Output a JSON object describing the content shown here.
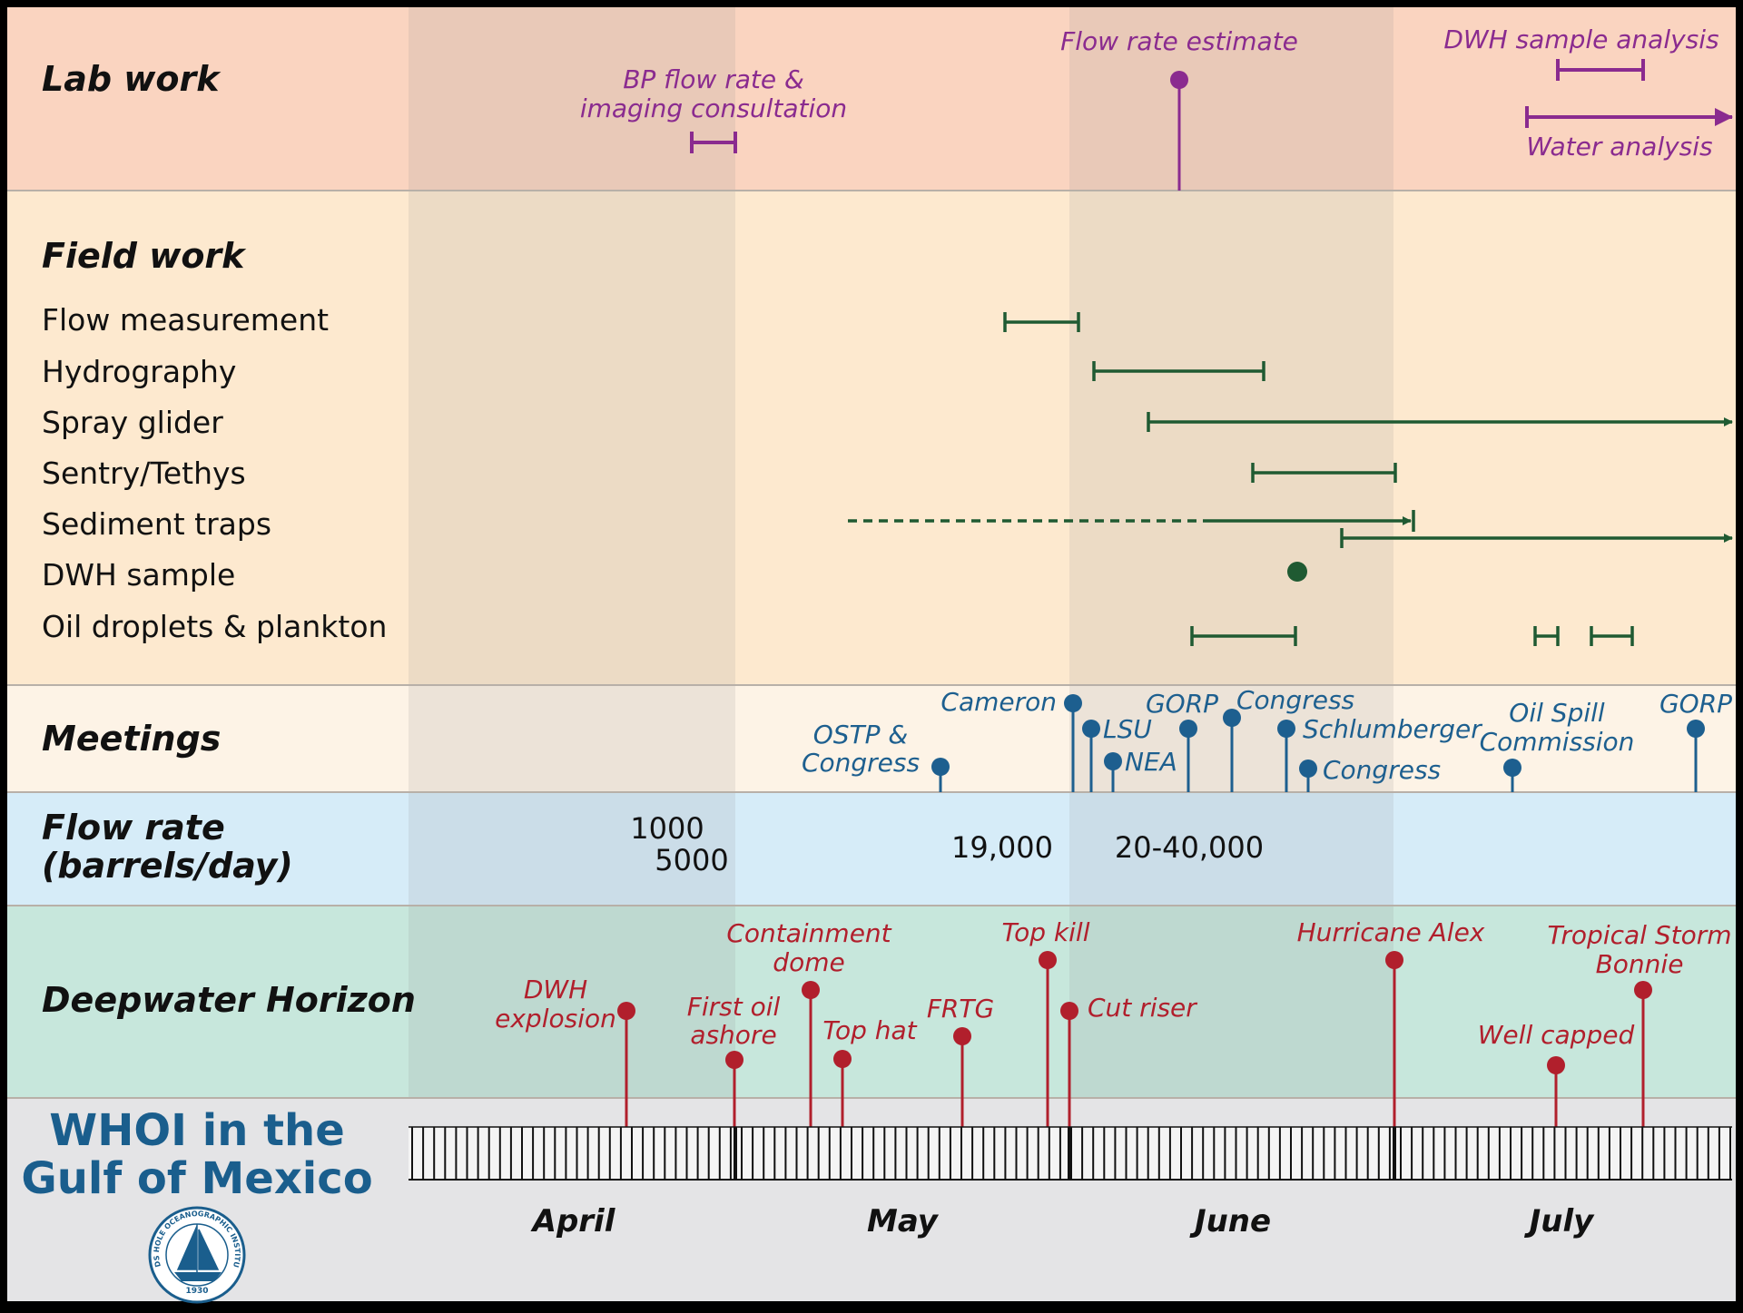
{
  "colors": {
    "lab_bg": "#fad4c0",
    "field_bg": "#fde9cf",
    "meetings_bg": "#fdf3e6",
    "flow_bg": "#d6ecf8",
    "dwh_bg": "#c7e7dc",
    "axis_bg": "#e4e4e6",
    "lab_accent": "#8a2b8f",
    "field_accent": "#1f5a32",
    "meetings_accent": "#1d5f8f",
    "dwh_accent": "#b11f2c",
    "brand": "#1a5e8d"
  },
  "sections": {
    "lab": "Lab work",
    "field": "Field work",
    "meetings": "Meetings",
    "flow_line1": "Flow rate",
    "flow_line2": "(barrels/day)",
    "dwh": "Deepwater Horizon"
  },
  "brand": {
    "line1": "WHOI in the",
    "line2": "Gulf of Mexico",
    "seal_text": "WOODS HOLE OCEANOGRAPHIC INSTITUTION",
    "seal_year": "1930"
  },
  "months": [
    "April",
    "May",
    "June",
    "July"
  ],
  "lab": {
    "bp_line1": "BP flow rate &",
    "bp_line2": "imaging consultation",
    "flow_estimate": "Flow rate estimate",
    "dwh_sample_analysis": "DWH sample analysis",
    "water_analysis": "Water analysis"
  },
  "field_rows": [
    "Flow measurement",
    "Hydrography",
    "Spray glider",
    "Sentry/Tethys",
    "Sediment traps",
    "DWH sample",
    "Oil droplets & plankton"
  ],
  "meetings": {
    "ostp_1": "OSTP &",
    "ostp_2": "Congress",
    "cameron": "Cameron",
    "lsu": "LSU",
    "nea": "NEA",
    "gorp1": "GORP",
    "congress1": "Congress",
    "schlumberger": "Schlumberger",
    "congress2": "Congress",
    "oilspill_1": "Oil Spill",
    "oilspill_2": "Commission",
    "gorp2": "GORP"
  },
  "flow_rates": {
    "r1": "1000",
    "r2": "5000",
    "r3": "19,000",
    "r4": "20-40,000"
  },
  "dwh": {
    "explosion_1": "DWH",
    "explosion_2": "explosion",
    "first_oil_1": "First oil",
    "first_oil_2": "ashore",
    "dome_1": "Containment",
    "dome_2": "dome",
    "top_hat": "Top hat",
    "frtg": "FRTG",
    "top_kill": "Top kill",
    "cut_riser": "Cut riser",
    "alex": "Hurricane Alex",
    "well_capped": "Well capped",
    "bonnie_1": "Tropical Storm",
    "bonnie_2": "Bonnie"
  }
}
